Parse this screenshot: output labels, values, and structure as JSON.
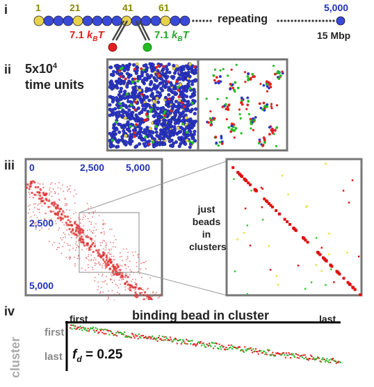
{
  "panels": {
    "i": "i",
    "ii": "ii",
    "iii": "iii",
    "iv": "iv"
  },
  "polymer": {
    "bead_numbers": [
      "1",
      "21",
      "41",
      "61"
    ],
    "last_bead": "5,000",
    "repeating_label": "repeating",
    "length_label": "15 Mbp",
    "energy_red": "7.1 k_BT",
    "energy_green": "7.1 k_BT",
    "colors": {
      "yellow": "#e8d24a",
      "blue": "#3a4ad8",
      "red": "#e02020",
      "green": "#22bb22"
    }
  },
  "snapshot": {
    "time_value": "5x10",
    "time_exponent": "4",
    "time_unit": "time units"
  },
  "contact_map": {
    "axis_ticks": [
      "0",
      "2,500",
      "5,000"
    ],
    "side_label": [
      "just",
      "beads",
      "in",
      "clusters"
    ]
  },
  "cluster_order": {
    "title": "binding bead in cluster",
    "x_first": "first",
    "x_last": "last",
    "y_title": "cluster",
    "y_first": "first",
    "y_last": "last",
    "fd_symbol": "f",
    "fd_sub": "d",
    "fd_value": "= 0.25"
  }
}
